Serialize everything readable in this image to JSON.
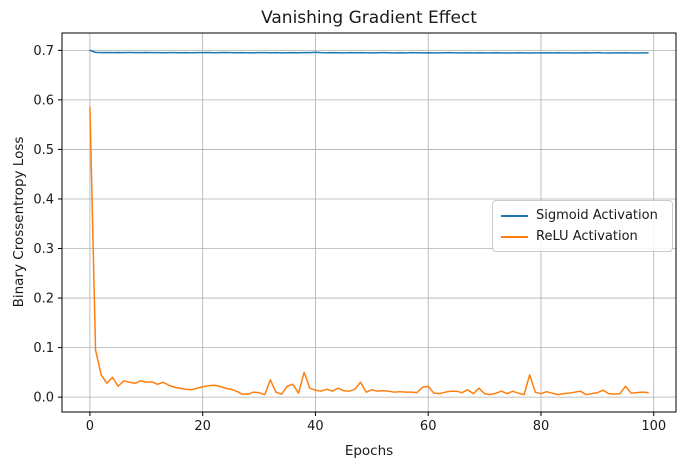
{
  "figure": {
    "background": "#ffffff",
    "spine_color": "#000000",
    "text_color": "#1a1a1a"
  },
  "chart_data": {
    "type": "line",
    "title": "Vanishing Gradient Effect",
    "xlabel": "Epochs",
    "ylabel": "Binary Crossentropy Loss",
    "grid": true,
    "grid_color": "#b0b0b0",
    "legend_position": "center right",
    "xlim": [
      -4.95,
      103.95
    ],
    "ylim": [
      -0.03,
      0.735
    ],
    "xticks": [
      0,
      20,
      40,
      60,
      80,
      100
    ],
    "xtick_labels": [
      "0",
      "20",
      "40",
      "60",
      "80",
      "100"
    ],
    "yticks": [
      0.0,
      0.1,
      0.2,
      0.3,
      0.4,
      0.5,
      0.6,
      0.7
    ],
    "ytick_labels": [
      "0.0",
      "0.1",
      "0.2",
      "0.3",
      "0.4",
      "0.5",
      "0.6",
      "0.7"
    ],
    "x": [
      0,
      1,
      2,
      3,
      4,
      5,
      6,
      7,
      8,
      9,
      10,
      11,
      12,
      13,
      14,
      15,
      16,
      17,
      18,
      19,
      20,
      21,
      22,
      23,
      24,
      25,
      26,
      27,
      28,
      29,
      30,
      31,
      32,
      33,
      34,
      35,
      36,
      37,
      38,
      39,
      40,
      41,
      42,
      43,
      44,
      45,
      46,
      47,
      48,
      49,
      50,
      51,
      52,
      53,
      54,
      55,
      56,
      57,
      58,
      59,
      60,
      61,
      62,
      63,
      64,
      65,
      66,
      67,
      68,
      69,
      70,
      71,
      72,
      73,
      74,
      75,
      76,
      77,
      78,
      79,
      80,
      81,
      82,
      83,
      84,
      85,
      86,
      87,
      88,
      89,
      90,
      91,
      92,
      93,
      94,
      95,
      96,
      97,
      98,
      99
    ],
    "series": [
      {
        "name": "Sigmoid Activation",
        "color": "#1f77b4",
        "values": [
          0.7,
          0.6959,
          0.6955,
          0.6956,
          0.6953,
          0.6956,
          0.6954,
          0.6956,
          0.6953,
          0.6954,
          0.6956,
          0.6953,
          0.6955,
          0.6952,
          0.6954,
          0.6955,
          0.6951,
          0.6954,
          0.6952,
          0.6955,
          0.6953,
          0.6956,
          0.6952,
          0.6954,
          0.6956,
          0.6953,
          0.6951,
          0.6954,
          0.6952,
          0.695,
          0.6953,
          0.6955,
          0.6951,
          0.6953,
          0.695,
          0.6952,
          0.6954,
          0.6951,
          0.6953,
          0.6955,
          0.6962,
          0.6953,
          0.6951,
          0.6954,
          0.6952,
          0.695,
          0.6953,
          0.6951,
          0.6954,
          0.6952,
          0.695,
          0.6952,
          0.6954,
          0.6951,
          0.6949,
          0.6952,
          0.695,
          0.6953,
          0.6951,
          0.6949,
          0.6952,
          0.695,
          0.6948,
          0.6951,
          0.6953,
          0.695,
          0.6948,
          0.6951,
          0.6949,
          0.6952,
          0.695,
          0.6948,
          0.6951,
          0.6949,
          0.6947,
          0.695,
          0.6952,
          0.6949,
          0.6947,
          0.695,
          0.6948,
          0.6951,
          0.6949,
          0.6952,
          0.695,
          0.6948,
          0.6946,
          0.6949,
          0.6951,
          0.6948,
          0.6954,
          0.6949,
          0.6947,
          0.695,
          0.6948,
          0.6951,
          0.6949,
          0.6947,
          0.695,
          0.6948
        ]
      },
      {
        "name": "ReLU Activation",
        "color": "#ff7f0e",
        "values": [
          0.585,
          0.095,
          0.045,
          0.028,
          0.04,
          0.022,
          0.033,
          0.03,
          0.028,
          0.033,
          0.03,
          0.031,
          0.026,
          0.03,
          0.024,
          0.02,
          0.018,
          0.016,
          0.015,
          0.018,
          0.021,
          0.023,
          0.024,
          0.022,
          0.018,
          0.016,
          0.012,
          0.006,
          0.006,
          0.01,
          0.009,
          0.005,
          0.035,
          0.01,
          0.006,
          0.022,
          0.026,
          0.008,
          0.05,
          0.018,
          0.014,
          0.012,
          0.016,
          0.012,
          0.018,
          0.013,
          0.012,
          0.016,
          0.03,
          0.01,
          0.015,
          0.012,
          0.013,
          0.012,
          0.01,
          0.011,
          0.01,
          0.01,
          0.009,
          0.02,
          0.022,
          0.008,
          0.007,
          0.01,
          0.012,
          0.012,
          0.009,
          0.015,
          0.007,
          0.018,
          0.007,
          0.005,
          0.008,
          0.012,
          0.007,
          0.012,
          0.008,
          0.005,
          0.045,
          0.01,
          0.007,
          0.011,
          0.008,
          0.005,
          0.007,
          0.008,
          0.01,
          0.012,
          0.005,
          0.007,
          0.009,
          0.014,
          0.007,
          0.006,
          0.007,
          0.022,
          0.008,
          0.009,
          0.01,
          0.009
        ]
      }
    ]
  }
}
